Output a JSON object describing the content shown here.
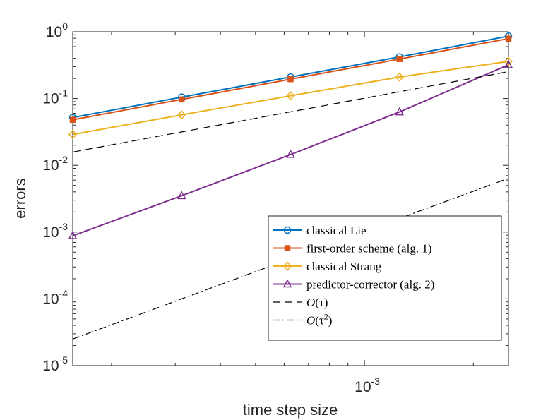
{
  "chart_data": {
    "type": "line",
    "xscale": "log",
    "yscale": "log",
    "xlabel": "time step size",
    "ylabel": "errors",
    "xlim": [
      0.00015625,
      0.0025
    ],
    "ylim": [
      1e-05,
      1
    ],
    "x_tick_labels": [
      {
        "value": 0.001,
        "base": "10",
        "exp": "-3"
      }
    ],
    "y_tick_labels": [
      {
        "value": 1,
        "base": "10",
        "exp": "0"
      },
      {
        "value": 0.1,
        "base": "10",
        "exp": "-1"
      },
      {
        "value": 0.01,
        "base": "10",
        "exp": "-2"
      },
      {
        "value": 0.001,
        "base": "10",
        "exp": "-3"
      },
      {
        "value": 0.0001,
        "base": "10",
        "exp": "-4"
      },
      {
        "value": 1e-05,
        "base": "10",
        "exp": "-5"
      }
    ],
    "x": [
      0.00015625,
      0.0003125,
      0.000625,
      0.00125,
      0.0025
    ],
    "series": [
      {
        "name": "classical Lie",
        "color": "#0072BD",
        "marker": "circle",
        "dash": "solid",
        "values": [
          0.052,
          0.105,
          0.21,
          0.42,
          0.86
        ]
      },
      {
        "name": "first-order scheme (alg. 1)",
        "color": "#D95319",
        "marker": "square",
        "dash": "solid",
        "values": [
          0.048,
          0.097,
          0.195,
          0.39,
          0.79
        ]
      },
      {
        "name": "classical Strang",
        "color": "#EDB120",
        "marker": "diamond",
        "dash": "solid",
        "values": [
          0.029,
          0.057,
          0.11,
          0.21,
          0.36
        ]
      },
      {
        "name": "predictor-corrector (alg. 2)",
        "color": "#7E2F8E",
        "marker": "triangle",
        "dash": "solid",
        "values": [
          0.00088,
          0.0035,
          0.0145,
          0.063,
          0.32
        ]
      }
    ],
    "reference_lines": [
      {
        "name": "O(τ)",
        "label_main": "O",
        "label_arg": "(τ)",
        "label_sup": "",
        "color": "#000000",
        "dash": "dashed",
        "x": [
          0.00015625,
          0.0025
        ],
        "values": [
          0.0158,
          0.253
        ]
      },
      {
        "name": "O(τ²)",
        "label_main": "O",
        "label_arg": "(τ",
        "label_sup": "2",
        "label_close": ")",
        "color": "#000000",
        "dash": "dashdot",
        "x": [
          0.00015625,
          0.0025
        ],
        "values": [
          2.5e-05,
          0.0064
        ]
      }
    ],
    "legend_position": "lower-right",
    "grid": false
  }
}
